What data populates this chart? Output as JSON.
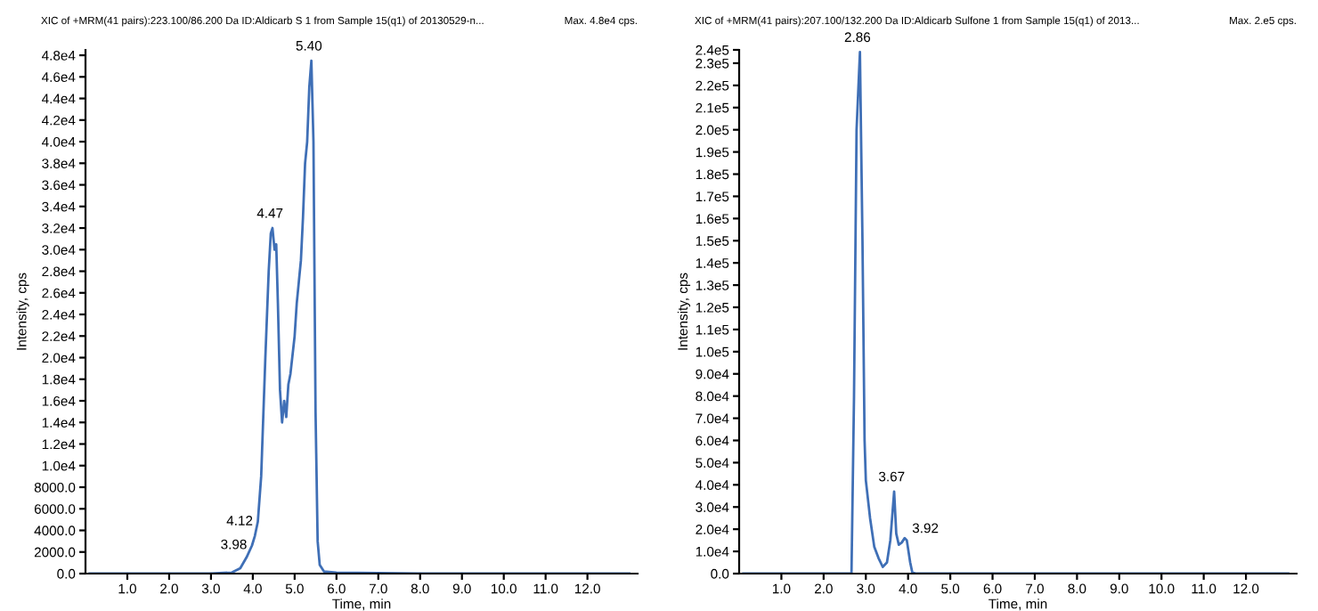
{
  "chart_data": [
    {
      "type": "line",
      "title": "XIC of +MRM(41 pairs):223.100/86.200 Da ID:Aldicarb S 1 from Sample 15(q1) of 20130529-n...",
      "xlabel": "Time, min",
      "ylabel": "Intensity, cps",
      "annotations": [
        "Max. 4.8e4 cps.",
        {
          "text": "5.40",
          "x": 5.4,
          "y": 47500
        },
        {
          "text": "4.47",
          "x": 4.47,
          "y": 32000
        },
        {
          "text": "4.12",
          "x": 4.12,
          "y": 4800
        },
        {
          "text": "3.98",
          "x": 3.98,
          "y": 2600
        }
      ],
      "series": [
        {
          "color": "#3f6fb6",
          "x": [
            0.1,
            1.0,
            2.0,
            3.0,
            3.5,
            3.7,
            3.85,
            3.98,
            4.05,
            4.12,
            4.2,
            4.3,
            4.38,
            4.43,
            4.47,
            4.52,
            4.56,
            4.6,
            4.65,
            4.7,
            4.75,
            4.8,
            4.85,
            4.9,
            5.0,
            5.05,
            5.1,
            5.15,
            5.2,
            5.25,
            5.3,
            5.35,
            5.4,
            5.45,
            5.5,
            5.55,
            5.6,
            5.7,
            6.0,
            8.0,
            10.0,
            13.0
          ],
          "values": [
            0,
            0,
            0,
            0,
            100,
            500,
            1500,
            2600,
            3500,
            4800,
            9000,
            20000,
            28000,
            31500,
            32000,
            30000,
            30500,
            25000,
            17000,
            14000,
            16000,
            14500,
            17500,
            18500,
            22000,
            25000,
            27000,
            29000,
            33000,
            38000,
            40000,
            45000,
            47500,
            40000,
            15000,
            3000,
            800,
            200,
            100,
            0,
            0,
            0
          ]
        }
      ],
      "xlim": [
        0,
        13.2
      ],
      "ylim": [
        0,
        48500
      ],
      "xticks": [
        {
          "value": 1,
          "label": "1.0"
        },
        {
          "value": 2,
          "label": "2.0"
        },
        {
          "value": 3,
          "label": "3.0"
        },
        {
          "value": 4,
          "label": "4.0"
        },
        {
          "value": 5,
          "label": "5.0"
        },
        {
          "value": 6,
          "label": "6.0"
        },
        {
          "value": 7,
          "label": "7.0"
        },
        {
          "value": 8,
          "label": "8.0"
        },
        {
          "value": 9,
          "label": "9.0"
        },
        {
          "value": 10,
          "label": "10.0"
        },
        {
          "value": 11,
          "label": "11.0"
        },
        {
          "value": 12,
          "label": "12.0"
        }
      ],
      "yticks": [
        {
          "value": 0,
          "label": "0.0"
        },
        {
          "value": 2000,
          "label": "2000.0"
        },
        {
          "value": 4000,
          "label": "4000.0"
        },
        {
          "value": 6000,
          "label": "6000.0"
        },
        {
          "value": 8000,
          "label": "8000.0"
        },
        {
          "value": 10000,
          "label": "1.0e4"
        },
        {
          "value": 12000,
          "label": "1.2e4"
        },
        {
          "value": 14000,
          "label": "1.4e4"
        },
        {
          "value": 16000,
          "label": "1.6e4"
        },
        {
          "value": 18000,
          "label": "1.8e4"
        },
        {
          "value": 20000,
          "label": "2.0e4"
        },
        {
          "value": 22000,
          "label": "2.2e4"
        },
        {
          "value": 24000,
          "label": "2.4e4"
        },
        {
          "value": 26000,
          "label": "2.6e4"
        },
        {
          "value": 28000,
          "label": "2.8e4"
        },
        {
          "value": 30000,
          "label": "3.0e4"
        },
        {
          "value": 32000,
          "label": "3.2e4"
        },
        {
          "value": 34000,
          "label": "3.4e4"
        },
        {
          "value": 36000,
          "label": "3.6e4"
        },
        {
          "value": 38000,
          "label": "3.8e4"
        },
        {
          "value": 40000,
          "label": "4.0e4"
        },
        {
          "value": 42000,
          "label": "4.2e4"
        },
        {
          "value": 44000,
          "label": "4.4e4"
        },
        {
          "value": 46000,
          "label": "4.6e4"
        },
        {
          "value": 48000,
          "label": "4.8e4"
        }
      ],
      "grid": false,
      "legend": false,
      "marker": "none",
      "line_style": "solid"
    },
    {
      "type": "line",
      "title": "XIC of +MRM(41 pairs):207.100/132.200 Da ID:Aldicarb Sulfone 1 from Sample 15(q1) of 2013...",
      "xlabel": "Time, min",
      "ylabel": "Intensity, cps",
      "annotations": [
        "Max. 2.e5 cps.",
        {
          "text": "2.86",
          "x": 2.86,
          "y": 235000
        },
        {
          "text": "3.67",
          "x": 3.67,
          "y": 37000
        },
        {
          "text": "3.92",
          "x": 3.92,
          "y": 16000
        }
      ],
      "series": [
        {
          "color": "#3f6fb6",
          "x": [
            0.1,
            1.0,
            2.0,
            2.6,
            2.66,
            2.72,
            2.78,
            2.86,
            2.92,
            2.97,
            3.0,
            3.1,
            3.2,
            3.3,
            3.4,
            3.5,
            3.58,
            3.67,
            3.72,
            3.78,
            3.85,
            3.92,
            3.97,
            4.05,
            4.1,
            4.2,
            6.0,
            8.0,
            10.0,
            13.0
          ],
          "values": [
            0,
            0,
            0,
            0,
            0,
            80000,
            200000,
            235000,
            150000,
            60000,
            42000,
            25000,
            12000,
            7000,
            3000,
            5000,
            15000,
            37000,
            18000,
            13000,
            14000,
            16000,
            15000,
            5000,
            500,
            0,
            0,
            0,
            0,
            0
          ]
        }
      ],
      "xlim": [
        0,
        13.2
      ],
      "ylim": [
        0,
        236000
      ],
      "xticks": [
        {
          "value": 1,
          "label": "1.0"
        },
        {
          "value": 2,
          "label": "2.0"
        },
        {
          "value": 3,
          "label": "3.0"
        },
        {
          "value": 4,
          "label": "4.0"
        },
        {
          "value": 5,
          "label": "5.0"
        },
        {
          "value": 6,
          "label": "6.0"
        },
        {
          "value": 7,
          "label": "7.0"
        },
        {
          "value": 8,
          "label": "8.0"
        },
        {
          "value": 9,
          "label": "9.0"
        },
        {
          "value": 10,
          "label": "10.0"
        },
        {
          "value": 11,
          "label": "11.0"
        },
        {
          "value": 12,
          "label": "12.0"
        }
      ],
      "yticks": [
        {
          "value": 0,
          "label": "0.0"
        },
        {
          "value": 10000,
          "label": "1.0e4"
        },
        {
          "value": 20000,
          "label": "2.0e4"
        },
        {
          "value": 30000,
          "label": "3.0e4"
        },
        {
          "value": 40000,
          "label": "4.0e4"
        },
        {
          "value": 50000,
          "label": "5.0e4"
        },
        {
          "value": 60000,
          "label": "6.0e4"
        },
        {
          "value": 70000,
          "label": "7.0e4"
        },
        {
          "value": 80000,
          "label": "8.0e4"
        },
        {
          "value": 90000,
          "label": "9.0e4"
        },
        {
          "value": 100000,
          "label": "1.0e5"
        },
        {
          "value": 110000,
          "label": "1.1e5"
        },
        {
          "value": 120000,
          "label": "1.2e5"
        },
        {
          "value": 130000,
          "label": "1.3e5"
        },
        {
          "value": 140000,
          "label": "1.4e5"
        },
        {
          "value": 150000,
          "label": "1.5e5"
        },
        {
          "value": 160000,
          "label": "1.6e5"
        },
        {
          "value": 170000,
          "label": "1.7e5"
        },
        {
          "value": 180000,
          "label": "1.8e5"
        },
        {
          "value": 190000,
          "label": "1.9e5"
        },
        {
          "value": 200000,
          "label": "2.0e5"
        },
        {
          "value": 210000,
          "label": "2.1e5"
        },
        {
          "value": 220000,
          "label": "2.2e5"
        },
        {
          "value": 230000,
          "label": "2.3e5"
        },
        {
          "value": 236000,
          "label": "2.4e5"
        }
      ],
      "grid": false,
      "legend": false,
      "marker": "none",
      "line_style": "solid"
    }
  ]
}
